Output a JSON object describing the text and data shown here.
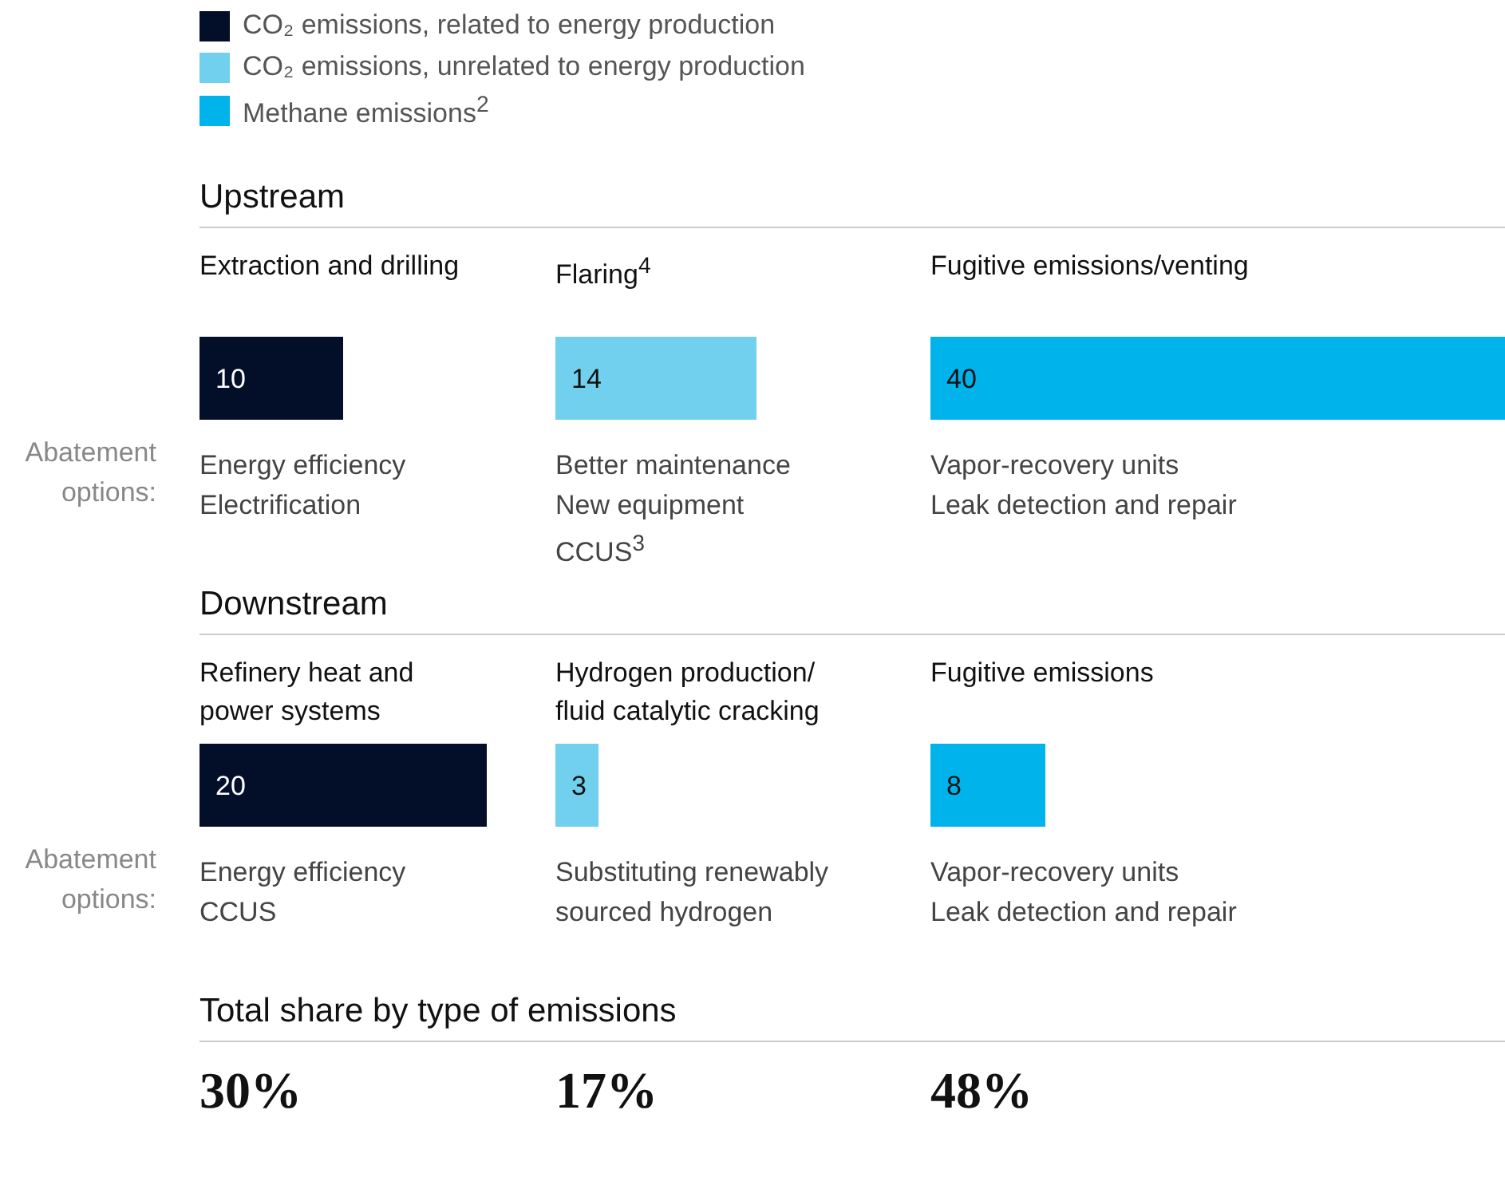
{
  "chart_data": [
    {
      "type": "bar",
      "orientation": "horizontal",
      "title": "Upstream",
      "categories": [
        "Extraction and drilling"
      ],
      "series": [
        {
          "name": "CO₂ emissions, related to energy production",
          "color": "#030f29",
          "values": [
            10
          ]
        }
      ],
      "data_labels": true,
      "legend": "top",
      "annotations": [
        "Abatement options:",
        "Energy efficiency\nElectrification"
      ]
    },
    {
      "type": "bar",
      "orientation": "horizontal",
      "categories": [
        "Flaring$^{4}$"
      ],
      "series": [
        {
          "name": "CO₂ emissions, unrelated to energy production",
          "color": "#72d0ef",
          "values": [
            14
          ]
        }
      ],
      "data_labels": true,
      "legend": "top",
      "annotations": [
        "Better maintenance\nNew equipment\nCCUS$^{3}$"
      ]
    },
    {
      "type": "bar",
      "orientation": "horizontal",
      "categories": [
        "Fugitive emissions/venting"
      ],
      "series": [
        {
          "name": "Methane emissions$^{2}$",
          "color": "#00b4eb",
          "values": [
            40
          ]
        }
      ],
      "data_labels": true,
      "legend": "top",
      "annotations": [
        "Vapor-recovery units\nLeak detection and repair"
      ]
    },
    {
      "type": "bar",
      "orientation": "horizontal",
      "title": "Downstream",
      "categories": [
        "Refinery heat and\npower systems"
      ],
      "series": [
        {
          "color": "#030f29",
          "values": [
            20
          ]
        }
      ],
      "data_labels": true,
      "annotations": [
        "Abatement options:",
        "Energy efficiency\nCCUS"
      ]
    },
    {
      "type": "bar",
      "orientation": "horizontal",
      "categories": [
        "Hydrogen production/\nfluid catalytic cracking"
      ],
      "series": [
        {
          "color": "#72d0ef",
          "values": [
            3
          ]
        }
      ],
      "data_labels": true,
      "annotations": [
        "Substituting renewably\nsourced hydrogen"
      ]
    },
    {
      "type": "bar",
      "orientation": "horizontal",
      "categories": [
        "Fugitive emissions"
      ],
      "series": [
        {
          "color": "#00b4eb",
          "values": [
            8
          ]
        }
      ],
      "data_labels": true,
      "annotations": [
        "Vapor-recovery units\nLeak detection and repair"
      ]
    },
    {
      "type": "other",
      "title": "Total share by type of emissions",
      "annotations": [
        "30%",
        "17%",
        "48%"
      ]
    }
  ]
}
